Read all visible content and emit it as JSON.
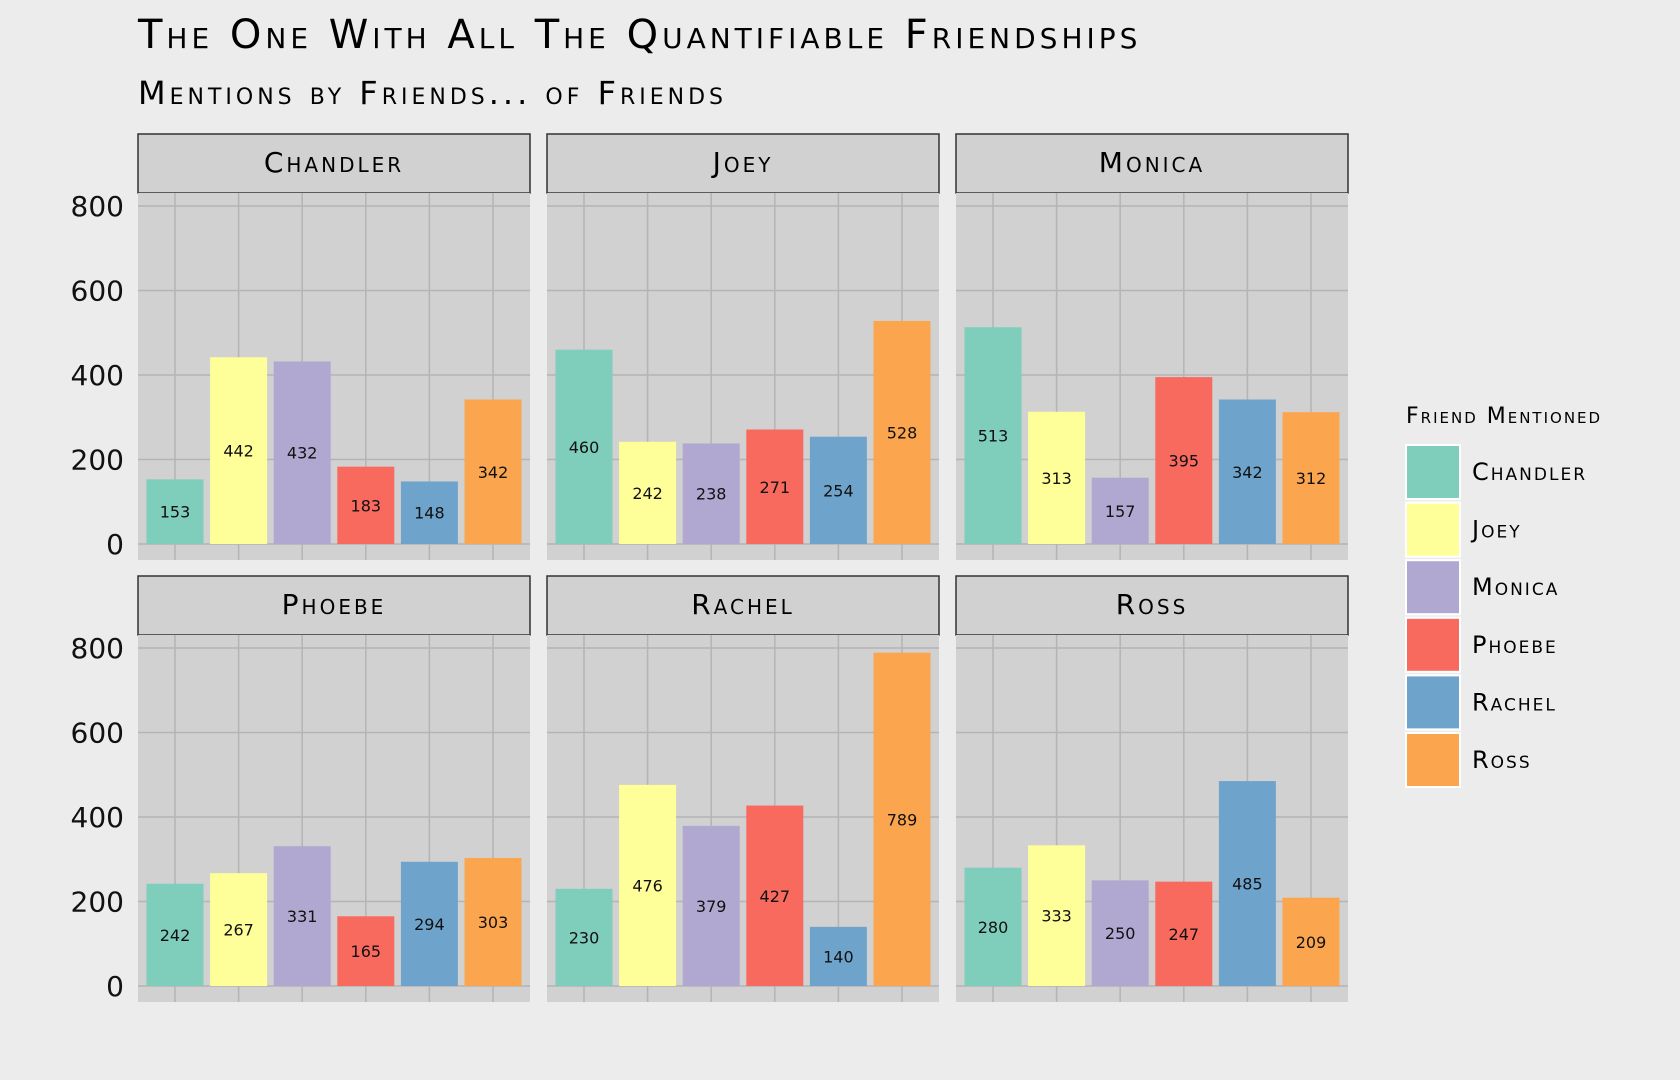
{
  "chart_data": {
    "type": "bar",
    "title": "The One With All The Quantifiable Friendships",
    "subtitle": "Mentions by Friends... of Friends",
    "xlabel": "",
    "ylabel": "",
    "ylim": [
      0,
      800
    ],
    "yticks": [
      0,
      200,
      400,
      600,
      800
    ],
    "grid": true,
    "legend": {
      "title": "Friend Mentioned",
      "position": "right"
    },
    "categories": [
      "Chandler",
      "Joey",
      "Monica",
      "Phoebe",
      "Rachel",
      "Ross"
    ],
    "colors": {
      "Chandler": "#7fcdbb",
      "Joey": "#ffff99",
      "Monica": "#b1a8d1",
      "Phoebe": "#f8695e",
      "Rachel": "#6ea3cc",
      "Ross": "#fba54e"
    },
    "panels": [
      {
        "name": "Chandler",
        "values": [
          153,
          442,
          432,
          183,
          148,
          342
        ]
      },
      {
        "name": "Joey",
        "values": [
          460,
          242,
          238,
          271,
          254,
          528
        ]
      },
      {
        "name": "Monica",
        "values": [
          513,
          313,
          157,
          395,
          342,
          312
        ]
      },
      {
        "name": "Phoebe",
        "values": [
          242,
          267,
          331,
          165,
          294,
          303
        ]
      },
      {
        "name": "Rachel",
        "values": [
          230,
          476,
          379,
          427,
          140,
          789
        ]
      },
      {
        "name": "Ross",
        "values": [
          280,
          333,
          250,
          247,
          485,
          209
        ]
      }
    ]
  }
}
